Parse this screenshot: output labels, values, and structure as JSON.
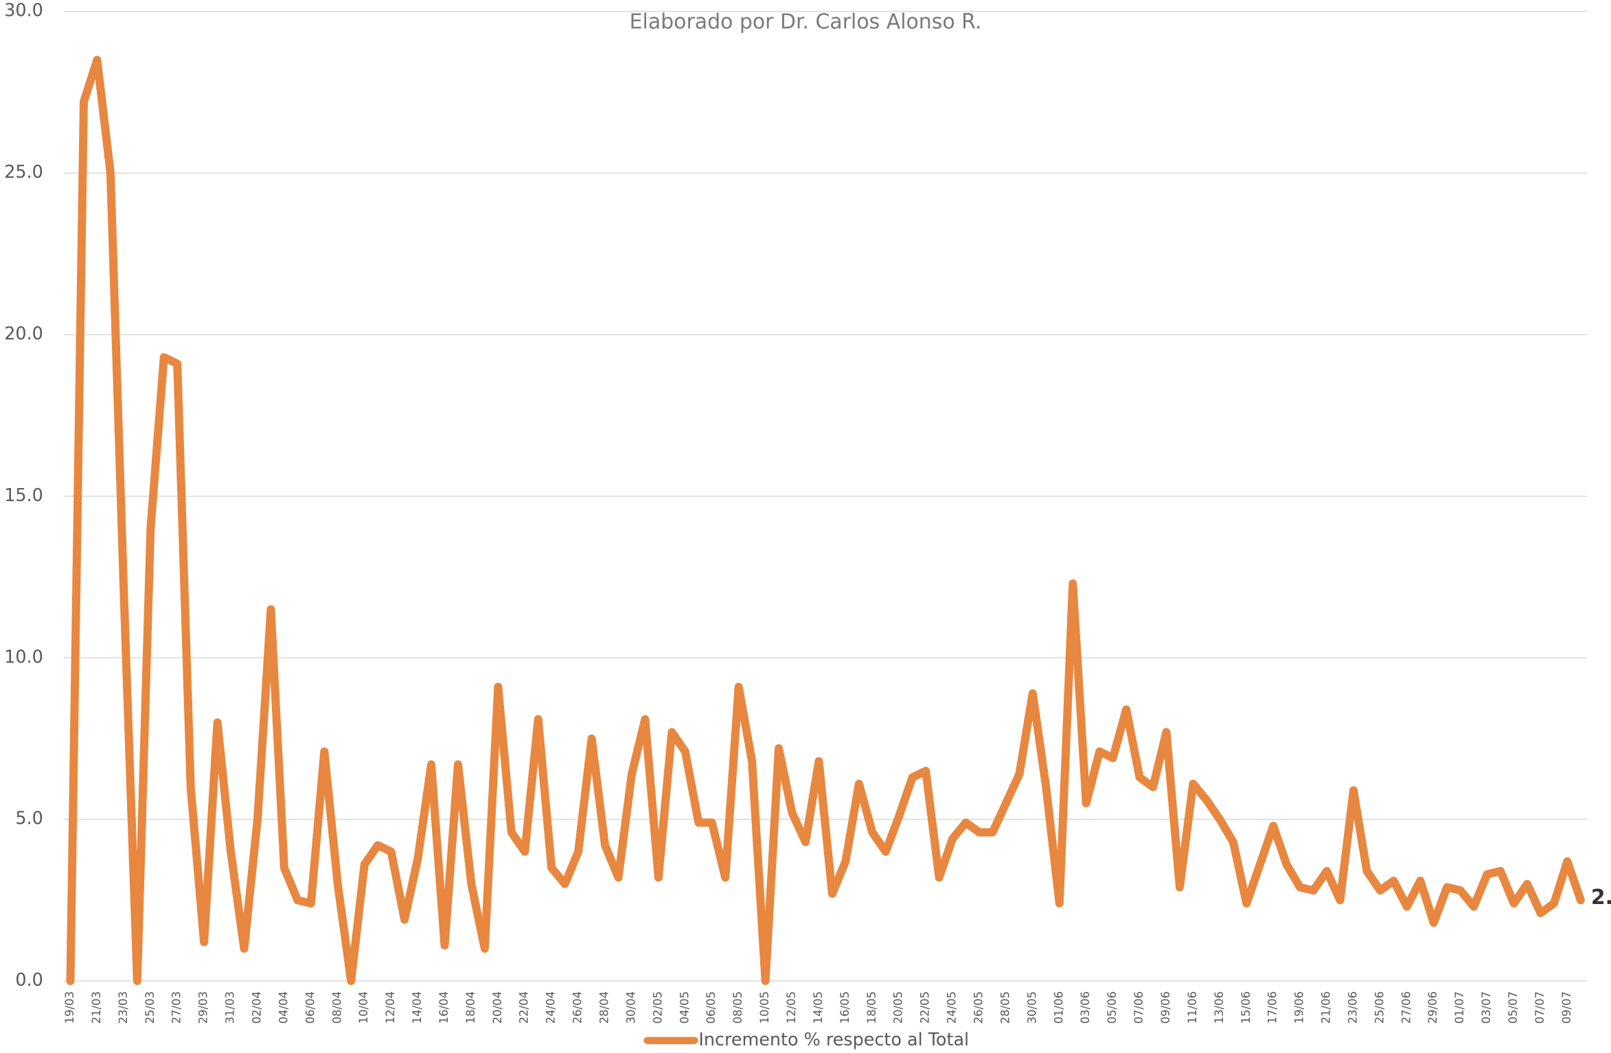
{
  "chart_data": {
    "type": "line",
    "subtitle": "Elaborado por Dr. Carlos Alonso R.",
    "categories": [
      "19/03",
      null,
      "21/03",
      null,
      "23/03",
      null,
      "25/03",
      null,
      "27/03",
      null,
      "29/03",
      null,
      "31/03",
      null,
      "02/04",
      null,
      "04/04",
      null,
      "06/04",
      null,
      "08/04",
      null,
      "10/04",
      null,
      "12/04",
      null,
      "14/04",
      null,
      "16/04",
      null,
      "18/04",
      null,
      "20/04",
      null,
      "22/04",
      null,
      "24/04",
      null,
      "26/04",
      null,
      "28/04",
      null,
      "30/04",
      null,
      "02/05",
      null,
      "04/05",
      null,
      "06/05",
      null,
      "08/05",
      null,
      "10/05",
      null,
      "12/05",
      null,
      "14/05",
      null,
      "16/05",
      null,
      "18/05",
      null,
      "20/05",
      null,
      "22/05",
      null,
      "24/05",
      null,
      "26/05",
      null,
      "28/05",
      null,
      "30/05",
      null,
      "01/06",
      null,
      "03/06",
      null,
      "05/06",
      null,
      "07/06",
      null,
      "09/06",
      null,
      "11/06",
      null,
      "13/06",
      null,
      "15/06",
      null,
      "17/06",
      null,
      "19/06",
      null,
      "21/06",
      null,
      "23/06",
      null,
      "25/06",
      null,
      "27/06",
      null,
      "29/06",
      null,
      "01/07",
      null,
      "03/07",
      null,
      "05/07",
      null,
      "07/07",
      null,
      "09/07",
      null
    ],
    "series": [
      {
        "name": "Incremento % respecto al Total",
        "color": "#e8873f",
        "values": [
          0,
          27.2,
          28.5,
          25,
          12,
          0,
          14,
          19.3,
          19.1,
          6.0,
          1.2,
          8.0,
          4.0,
          1.0,
          5.0,
          11.5,
          3.5,
          2.5,
          2.4,
          7.1,
          3.0,
          0.0,
          3.6,
          4.2,
          4.0,
          1.9,
          3.8,
          6.7,
          1.1,
          6.7,
          3.0,
          1.0,
          9.1,
          4.6,
          4.0,
          8.1,
          3.5,
          3.0,
          4.0,
          7.5,
          4.2,
          3.2,
          6.4,
          8.1,
          3.2,
          7.7,
          7.1,
          4.9,
          4.9,
          3.2,
          9.1,
          6.8,
          0.0,
          7.2,
          5.2,
          4.3,
          6.8,
          2.7,
          3.7,
          6.1,
          4.6,
          4.0,
          5.1,
          6.3,
          6.5,
          3.2,
          4.4,
          4.9,
          4.6,
          4.6,
          5.5,
          6.4,
          8.9,
          6.0,
          2.4,
          12.3,
          5.5,
          7.1,
          6.9,
          8.4,
          6.3,
          6.0,
          7.7,
          2.9,
          6.1,
          5.6,
          5.0,
          4.3,
          2.4,
          3.6,
          4.8,
          3.6,
          2.9,
          2.8,
          3.4,
          2.5,
          5.9,
          3.4,
          2.8,
          3.1,
          2.3,
          3.1,
          1.8,
          2.9,
          2.8,
          2.3,
          3.3,
          3.4,
          2.4,
          3.0,
          2.1,
          2.4,
          3.7,
          2.5
        ]
      }
    ],
    "ylim": [
      0,
      30
    ],
    "yticks": [
      {
        "value": 0,
        "label": "0.0"
      },
      {
        "value": 5,
        "label": "5.0"
      },
      {
        "value": 10,
        "label": "10.0"
      },
      {
        "value": 15,
        "label": "15.0"
      },
      {
        "value": 20,
        "label": "20.0"
      },
      {
        "value": 25,
        "label": "25.0"
      },
      {
        "value": 30,
        "label": "30.0"
      }
    ],
    "grid": true,
    "legend": "bottom",
    "last_value_label": true
  }
}
